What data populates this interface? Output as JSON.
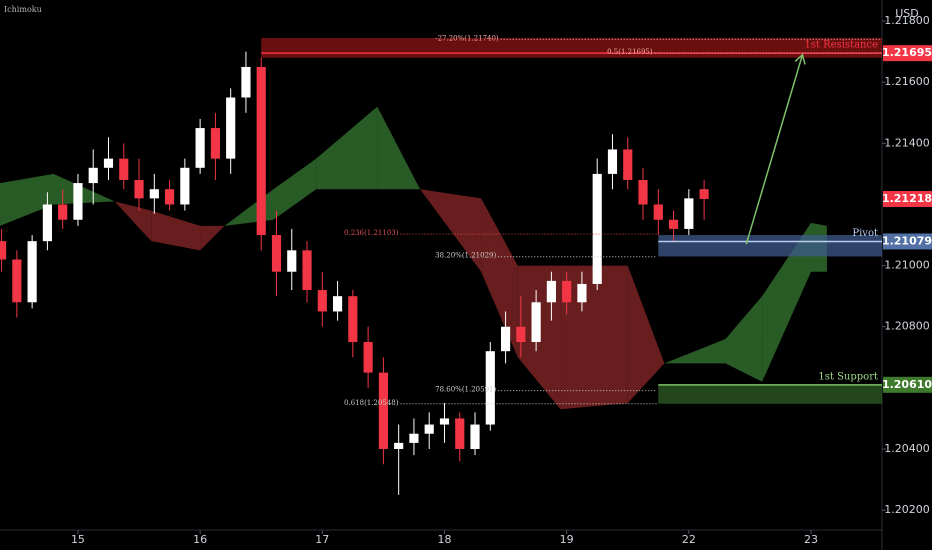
{
  "chart_data": {
    "type": "candlestick",
    "indicator": "Ichimoku",
    "currency": "USD",
    "up_color": "#ffffff",
    "down_color": "#f23645",
    "xlim": [
      14.362,
      21.581
    ],
    "ylim": [
      1.20135,
      1.21869
    ],
    "xticks": [
      15,
      16,
      17,
      18,
      19,
      {
        "value": 20,
        "label": "22"
      },
      {
        "value": 21,
        "label": "23"
      }
    ],
    "yticks": [
      {
        "value": 1.218,
        "label": "1.21800"
      },
      {
        "value": 1.216,
        "label": "1.21600"
      },
      {
        "value": 1.214,
        "label": "1.21400"
      },
      {
        "value": 1.21,
        "label": "1.21000"
      },
      {
        "value": 1.208,
        "label": "1.20800"
      },
      {
        "value": 1.204,
        "label": "1.20400"
      },
      {
        "value": 1.202,
        "label": "1.20200"
      }
    ],
    "x": [
      14.375,
      14.5,
      14.625,
      14.75,
      14.875,
      15.0,
      15.125,
      15.25,
      15.375,
      15.5,
      15.625,
      15.75,
      15.875,
      16.0,
      16.125,
      16.25,
      16.375,
      16.5,
      16.625,
      16.75,
      16.875,
      17.0,
      17.125,
      17.25,
      17.375,
      17.5,
      17.625,
      17.75,
      17.875,
      18.0,
      18.125,
      18.25,
      18.375,
      18.5,
      18.625,
      18.75,
      18.875,
      19.0,
      19.125,
      19.25,
      19.375,
      19.5,
      19.625,
      19.75,
      19.875,
      20.0,
      20.125
    ],
    "open": [
      1.2108,
      1.2102,
      1.2088,
      1.2108,
      1.212,
      1.2115,
      1.2127,
      1.2132,
      1.2135,
      1.2128,
      1.2122,
      1.2125,
      1.212,
      1.2132,
      1.2145,
      1.2135,
      1.2155,
      1.2165,
      1.211,
      1.2098,
      1.2105,
      1.2092,
      1.2085,
      1.209,
      1.2075,
      1.2065,
      1.204,
      1.2042,
      1.2045,
      1.2048,
      1.205,
      1.204,
      1.2048,
      1.2072,
      1.208,
      1.2075,
      1.2088,
      1.2095,
      1.2088,
      1.2094,
      1.213,
      1.2138,
      1.2128,
      1.212,
      1.2115,
      1.2112,
      1.2125
    ],
    "high": [
      1.2112,
      1.2105,
      1.211,
      1.2124,
      1.2125,
      1.213,
      1.2138,
      1.2142,
      1.214,
      1.2135,
      1.213,
      1.2128,
      1.2135,
      1.2148,
      1.215,
      1.2158,
      1.217,
      1.2168,
      1.2118,
      1.2112,
      1.2108,
      1.2098,
      1.2095,
      1.2092,
      1.208,
      1.207,
      1.2048,
      1.205,
      1.2052,
      1.2055,
      1.2052,
      1.2052,
      1.2075,
      1.2085,
      1.209,
      1.2092,
      1.2098,
      1.2098,
      1.2098,
      1.2135,
      1.2143,
      1.2142,
      1.2132,
      1.2125,
      1.2118,
      1.2125,
      1.2128
    ],
    "low": [
      1.2098,
      1.2083,
      1.2086,
      1.2105,
      1.2112,
      1.2113,
      1.212,
      1.2128,
      1.2125,
      1.2118,
      1.2117,
      1.2118,
      1.2118,
      1.213,
      1.2128,
      1.213,
      1.215,
      1.2105,
      1.209,
      1.2092,
      1.2088,
      1.208,
      1.2082,
      1.207,
      1.206,
      1.2035,
      1.2025,
      1.2038,
      1.204,
      1.2042,
      1.2036,
      1.2038,
      1.2046,
      1.2068,
      1.207,
      1.2072,
      1.2082,
      1.2084,
      1.2085,
      1.2092,
      1.2125,
      1.2125,
      1.2115,
      1.211,
      1.2108,
      1.211,
      1.2115
    ],
    "close": [
      1.2102,
      1.2088,
      1.2108,
      1.212,
      1.2115,
      1.2127,
      1.2132,
      1.2135,
      1.2128,
      1.2122,
      1.2125,
      1.212,
      1.2132,
      1.2145,
      1.2135,
      1.2155,
      1.2165,
      1.211,
      1.2098,
      1.2105,
      1.2092,
      1.2085,
      1.209,
      1.2075,
      1.2065,
      1.204,
      1.2042,
      1.2045,
      1.2048,
      1.205,
      1.204,
      1.2048,
      1.2072,
      1.208,
      1.2075,
      1.2088,
      1.2095,
      1.2088,
      1.2094,
      1.213,
      1.2138,
      1.2128,
      1.212,
      1.2115,
      1.2112,
      1.2122,
      1.21218
    ],
    "last_price": 1.21218,
    "cloud": {
      "up_color": "#2f6b2c",
      "down_color": "#7a2323",
      "x": [
        14.362,
        14.8,
        15.3,
        15.6,
        16.0,
        16.2,
        16.6,
        16.95,
        17.45,
        17.8,
        18.3,
        18.6,
        18.95,
        19.5,
        19.8,
        20.3,
        20.6,
        21.0,
        21.13
      ],
      "span_a": [
        1.2127,
        1.213,
        1.2121,
        1.2108,
        1.2105,
        1.2113,
        1.2125,
        1.2135,
        1.2152,
        1.2125,
        1.2098,
        1.207,
        1.2053,
        1.2055,
        1.2068,
        1.2076,
        1.209,
        1.2114,
        1.2113
      ],
      "span_b": [
        1.2113,
        1.212,
        1.2121,
        1.2118,
        1.2113,
        1.2113,
        1.2115,
        1.2125,
        1.2125,
        1.2125,
        1.2122,
        1.21,
        1.21,
        1.21,
        1.2068,
        1.2068,
        1.2062,
        1.2098,
        1.2098
      ]
    },
    "zones": [
      {
        "name": "1st Resistance",
        "price": 1.21695,
        "top": 1.21745,
        "bottom": 1.2168,
        "x_start": 16.5,
        "fill": "#8e1414",
        "line": "#f23645",
        "name_color": "#f23645",
        "tag_color": "#f23645"
      },
      {
        "name": "Pivot",
        "price": 1.21079,
        "top": 1.211,
        "bottom": 1.2103,
        "x_start": 19.75,
        "fill": "#3d5a8a",
        "line": "#b8cdf0",
        "name_color": "#b8cdf0",
        "tag_color": "#5070a6"
      },
      {
        "name": "1st Support",
        "price": {
          "value": 1.2061,
          "label": "1.20610"
        },
        "top": 1.2061,
        "bottom": 1.20548,
        "x_start": 19.75,
        "fill": "#2f5e25",
        "line": "#7ec26a",
        "name_color": "#9fd98a",
        "tag_color": "#3d7a2c"
      }
    ],
    "fib_lines": [
      {
        "label": "-27.20%(1.21740)",
        "value": 1.2174,
        "xrange": [
          18.46,
          21.581
        ],
        "color": "#f7a6a6"
      },
      {
        "label": "0.5(1.21695)",
        "value": 1.21695,
        "xrange": [
          19.72,
          21.581
        ],
        "color": "#f7a6a6"
      },
      {
        "label": "0.236(1.21103)",
        "value": 1.21103,
        "xrange": [
          17.64,
          19.74
        ],
        "color": "#e05050"
      },
      {
        "label": "38.20%(1.21029)",
        "value": 1.21029,
        "xrange": [
          18.44,
          19.74
        ],
        "color": "#cccccc"
      },
      {
        "label": "78.60%(1.20591)",
        "value": 1.20591,
        "xrange": [
          18.44,
          19.74
        ],
        "color": "#cccccc"
      },
      {
        "label": "0.618(1.20548)",
        "value": 1.20548,
        "xrange": [
          17.64,
          19.74
        ],
        "color": "#cccccc"
      }
    ],
    "arrow": {
      "from": [
        20.47,
        1.2107
      ],
      "to": [
        20.93,
        1.2169
      ],
      "color": "#7ec26a"
    }
  }
}
